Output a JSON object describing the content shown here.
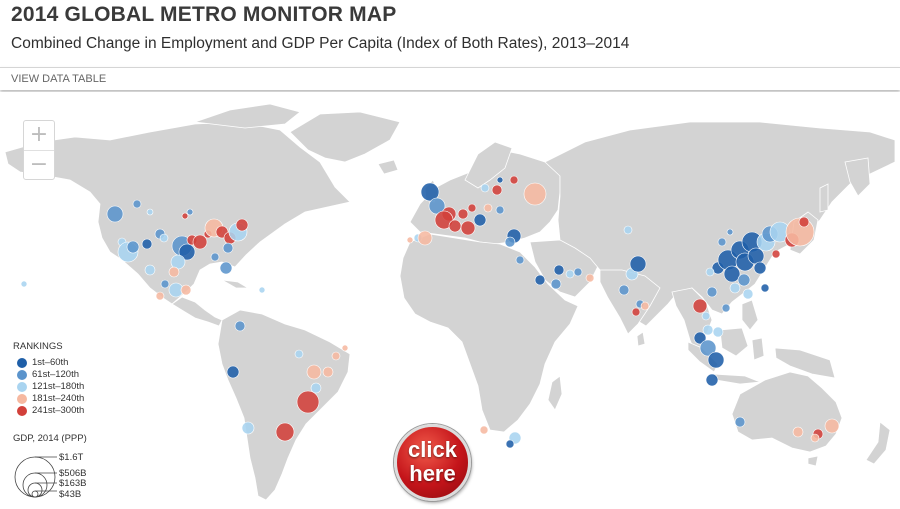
{
  "header": {
    "title": "2014 GLOBAL METRO MONITOR MAP",
    "subtitle": "Combined Change in Employment and GDP Per Capita (Index of Both Rates), 2013–2014"
  },
  "toolbar": {
    "view_data_label": "VIEW DATA TABLE"
  },
  "zoom": {
    "in_label": "+",
    "out_label": "−"
  },
  "rankings_legend": {
    "title": "RANKINGS",
    "items": [
      {
        "label": "1st–60th",
        "color": "#1f5fa8"
      },
      {
        "label": "61st–120th",
        "color": "#5b94cc"
      },
      {
        "label": "121st–180th",
        "color": "#a9d4f0"
      },
      {
        "label": "181st–240th",
        "color": "#f6b8a0"
      },
      {
        "label": "241st–300th",
        "color": "#d2403a"
      }
    ]
  },
  "gdp_legend": {
    "title": "GDP, 2014 (PPP)",
    "items": [
      "$1.6T",
      "$506B",
      "$163B",
      "$43B"
    ]
  },
  "cta": {
    "line1": "click",
    "line2": "here",
    "color": "#c4141a"
  },
  "colors": {
    "land": "#d3d3d3",
    "ocean": "#ffffff"
  }
}
